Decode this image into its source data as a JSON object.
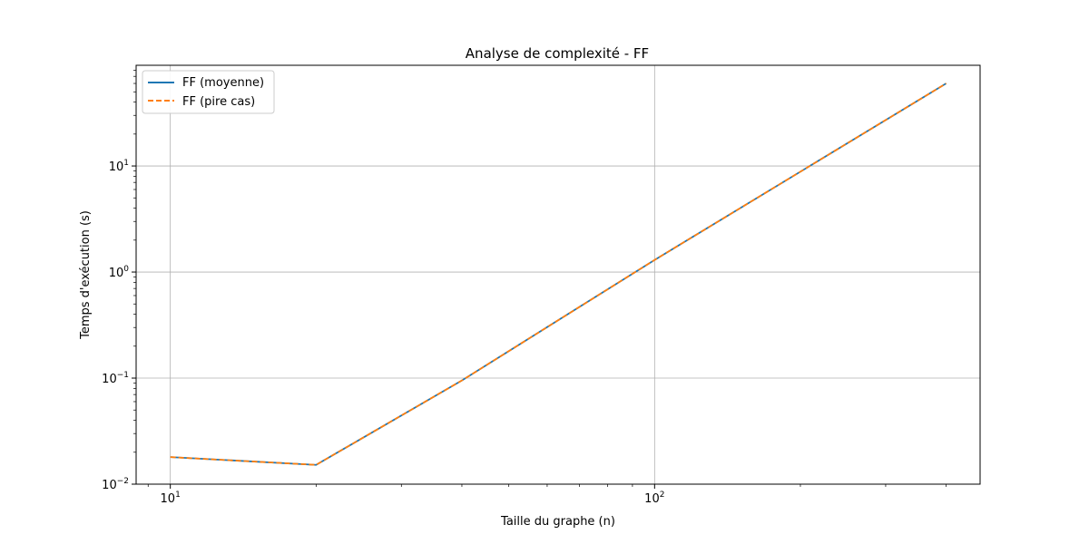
{
  "chart_data": {
    "type": "line",
    "title": "Analyse de complexité - FF",
    "xlabel": "Taille du graphe (n)",
    "ylabel": "Temps d'exécution (s)",
    "xscale": "log",
    "yscale": "log",
    "xlim": [
      8.5,
      470
    ],
    "ylim": [
      0.01,
      89
    ],
    "grid": true,
    "legend_position": "top-left",
    "x_ticks": [
      {
        "value": 10,
        "base": "10",
        "exp": "1"
      },
      {
        "value": 100,
        "base": "10",
        "exp": "2"
      }
    ],
    "y_ticks": [
      {
        "value": 0.01,
        "base": "10",
        "exp": "−2"
      },
      {
        "value": 0.1,
        "base": "10",
        "exp": "−1"
      },
      {
        "value": 1,
        "base": "10",
        "exp": "0"
      },
      {
        "value": 10,
        "base": "10",
        "exp": "1"
      }
    ],
    "x": [
      10,
      20,
      40,
      100,
      400
    ],
    "series": [
      {
        "name": "FF (moyenne)",
        "values": [
          0.018,
          0.0152,
          0.095,
          1.3,
          60
        ],
        "color": "#1f77b4",
        "style": "solid"
      },
      {
        "name": "FF (pire cas)",
        "values": [
          0.018,
          0.0152,
          0.095,
          1.3,
          60
        ],
        "color": "#ff7f0e",
        "style": "dashed"
      }
    ]
  }
}
